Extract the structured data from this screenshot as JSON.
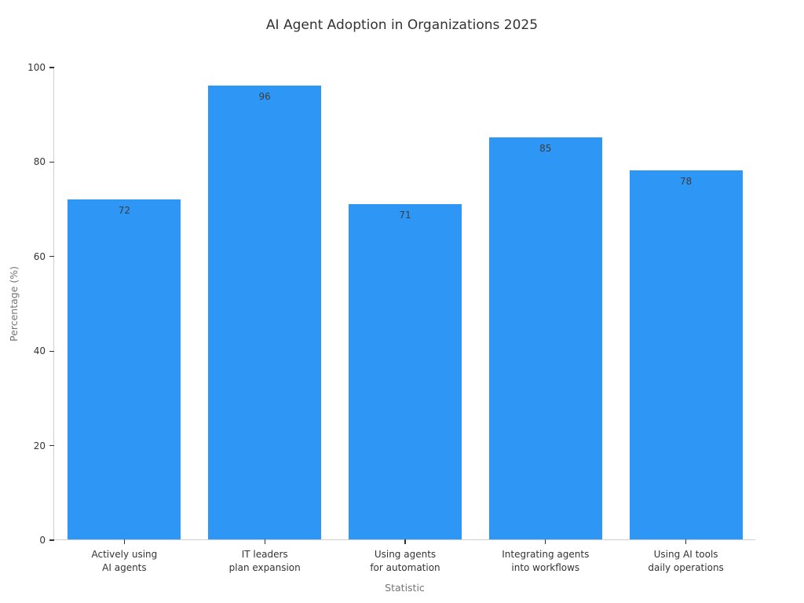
{
  "chart_data": {
    "type": "bar",
    "title": "AI Agent Adoption in Organizations 2025",
    "xlabel": "Statistic",
    "ylabel": "Percentage (%)",
    "categories": [
      "Actively using\nAI agents",
      "IT leaders\nplan expansion",
      "Using agents\nfor automation",
      "Integrating agents\ninto workflows",
      "Using AI tools\ndaily operations"
    ],
    "values": [
      72,
      96,
      71,
      85,
      78
    ],
    "ylim": [
      0,
      100
    ],
    "yticks": [
      0,
      20,
      40,
      60,
      80,
      100
    ],
    "grid": false,
    "legend": "none",
    "bar_color": "#2E96F4",
    "value_label_color": "#3d3d3d",
    "tick_label_color": "#333333",
    "axis_title_color": "#757575",
    "spine_color": "#cfcfcf"
  }
}
